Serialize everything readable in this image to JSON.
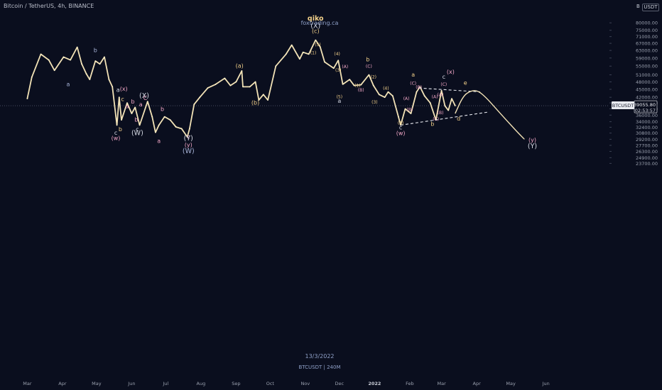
{
  "header": {
    "symbol_line": "Bitcoin / TetherUS, 4h, BINANCE",
    "currency": "USDT",
    "currency_prefix": "B",
    "author": "qiko",
    "site": "foxtrading.ca",
    "date": "13/3/2022",
    "footer_symbol": "BTCUSDT | 240M"
  },
  "chart_data": {
    "type": "line",
    "title": "",
    "xlabel": "",
    "ylabel": "",
    "y_scale": "log",
    "ylim": [
      22600,
      84000
    ],
    "price_ticks": [
      80000,
      75000,
      71000,
      67000,
      63000,
      59000,
      55000,
      51000,
      48000,
      45000,
      42000,
      40000,
      38000,
      36000,
      34000,
      32400,
      30800,
      29200,
      27700,
      26300,
      24900,
      23700
    ],
    "months": [
      "Mar",
      "Apr",
      "May",
      "Jun",
      "Jul",
      "Aug",
      "Sep",
      "Oct",
      "Nov",
      "Dec",
      "2022",
      "Feb",
      "Mar",
      "Apr",
      "May",
      "Jun"
    ],
    "last_price": {
      "symbol": "BTCUSDT",
      "price": "39055.80",
      "countdown": "02:53:57",
      "value": 39055.8
    },
    "price_series": {
      "name": "",
      "x": [
        "2021-03-01",
        "2021-03-05",
        "2021-03-13",
        "2021-03-20",
        "2021-03-25",
        "2021-04-02",
        "2021-04-08",
        "2021-04-14",
        "2021-04-18",
        "2021-04-22",
        "2021-04-25",
        "2021-04-30",
        "2021-05-04",
        "2021-05-08",
        "2021-05-12",
        "2021-05-15",
        "2021-05-19",
        "2021-05-21",
        "2021-05-23",
        "2021-05-28",
        "2021-06-01",
        "2021-06-04",
        "2021-06-08",
        "2021-06-15",
        "2021-06-19",
        "2021-06-22",
        "2021-06-25",
        "2021-06-30",
        "2021-07-05",
        "2021-07-10",
        "2021-07-15",
        "2021-07-20",
        "2021-07-22",
        "2021-07-26",
        "2021-07-31",
        "2021-08-07",
        "2021-08-14",
        "2021-08-22",
        "2021-08-27",
        "2021-09-01",
        "2021-09-06",
        "2021-09-07",
        "2021-09-13",
        "2021-09-18",
        "2021-09-21",
        "2021-09-25",
        "2021-09-29",
        "2021-10-06",
        "2021-10-15",
        "2021-10-20",
        "2021-10-27",
        "2021-10-30",
        "2021-11-04",
        "2021-11-10",
        "2021-11-14",
        "2021-11-18",
        "2021-11-26",
        "2021-11-30",
        "2021-12-04",
        "2021-12-10",
        "2021-12-14",
        "2021-12-20",
        "2021-12-27",
        "2021-12-31",
        "2022-01-05",
        "2022-01-10",
        "2022-01-13",
        "2022-01-17",
        "2022-01-22",
        "2022-01-24",
        "2022-01-28",
        "2022-02-02",
        "2022-02-07",
        "2022-02-10",
        "2022-02-14",
        "2022-02-19",
        "2022-02-24",
        "2022-03-01",
        "2022-03-04",
        "2022-03-07",
        "2022-03-10",
        "2022-03-13"
      ],
      "y": [
        41500,
        50000,
        61000,
        58000,
        53000,
        59500,
        58000,
        64800,
        56000,
        51500,
        49000,
        57500,
        56000,
        59500,
        49000,
        46000,
        33000,
        42000,
        34500,
        40000,
        36500,
        38500,
        33000,
        40500,
        35500,
        31000,
        33000,
        35500,
        34500,
        32500,
        32000,
        29800,
        32000,
        39500,
        42000,
        45500,
        47000,
        49500,
        46500,
        48000,
        52800,
        46000,
        46000,
        48000,
        41000,
        43000,
        41000,
        55000,
        61000,
        66000,
        58500,
        62000,
        61000,
        68900,
        65000,
        57000,
        54000,
        57800,
        47000,
        49000,
        46500,
        46800,
        51000,
        46500,
        43000,
        42000,
        44000,
        42500,
        35500,
        33000,
        38000,
        36500,
        44000,
        46000,
        42500,
        40000,
        34500,
        44500,
        39000,
        37500,
        41500,
        39055
      ]
    },
    "projection": {
      "name": "",
      "x": [
        "2022-03-13",
        "2022-03-20",
        "2022-03-27",
        "2022-04-02",
        "2022-04-09",
        "2022-04-17",
        "2022-04-27",
        "2022-05-07",
        "2022-05-13"
      ],
      "y": [
        36500,
        42500,
        44500,
        44500,
        42000,
        38500,
        34500,
        31000,
        29200
      ]
    },
    "triangle_lines": [
      {
        "x": [
          "2022-02-09",
          "2022-04-04"
        ],
        "y": [
          45500,
          44000
        ]
      },
      {
        "x": [
          "2022-01-24",
          "2022-04-12"
        ],
        "y": [
          33000,
          37000
        ]
      }
    ],
    "wave_labels": [
      {
        "text": "b",
        "x": "2021-04-30",
        "y": 62000,
        "color": "#a8b4d8"
      },
      {
        "text": "a",
        "x": "2021-04-06",
        "y": 46200,
        "color": "#a8b4d8"
      },
      {
        "text": "a",
        "x": "2021-05-20",
        "y": 44000,
        "color": "#d8dce6"
      },
      {
        "text": "(x)",
        "x": "2021-05-25",
        "y": 44500,
        "color": "#f4a8c8"
      },
      {
        "text": "c",
        "x": "2021-05-24",
        "y": 40700,
        "color": "#f2d08a"
      },
      {
        "text": "a",
        "x": "2021-05-28",
        "y": 38200,
        "color": "#f4a8c8"
      },
      {
        "text": "b",
        "x": "2021-05-22",
        "y": 31300,
        "color": "#f2d08a"
      },
      {
        "text": "c",
        "x": "2021-05-18",
        "y": 30400,
        "color": "#d8dce6"
      },
      {
        "text": "(w)",
        "x": "2021-05-18",
        "y": 29000,
        "color": "#f4a8c8"
      },
      {
        "text": "(X)",
        "x": "2021-06-12",
        "y": 41800,
        "color": "#d8dce6"
      },
      {
        "text": "C",
        "x": "2021-06-13",
        "y": 41000,
        "color": "#f4a8c8"
      },
      {
        "text": "b",
        "x": "2021-06-02",
        "y": 39800,
        "color": "#f4a8c8"
      },
      {
        "text": "a",
        "x": "2021-06-09",
        "y": 38800,
        "color": "#f4a8c8"
      },
      {
        "text": "b",
        "x": "2021-06-05",
        "y": 34000,
        "color": "#f4a8c8"
      },
      {
        "text": "c",
        "x": "2021-06-06",
        "y": 31300,
        "color": "#d8dce6"
      },
      {
        "text": "(W)",
        "x": "2021-06-06",
        "y": 30300,
        "color": "#d8dce6"
      },
      {
        "text": "a",
        "x": "2021-06-25",
        "y": 28300,
        "color": "#f4a8c8"
      },
      {
        "text": "b",
        "x": "2021-06-28",
        "y": 37300,
        "color": "#f4a8c8"
      },
      {
        "text": "c",
        "x": "2021-07-21",
        "y": 29400,
        "color": "#f4a8c8"
      },
      {
        "text": "(Y)",
        "x": "2021-07-21",
        "y": 28900,
        "color": "#d8dce6"
      },
      {
        "text": "(y)",
        "x": "2021-07-21",
        "y": 27400,
        "color": "#f4a8c8"
      },
      {
        "text": "(W)",
        "x": "2021-07-21",
        "y": 25900,
        "color": "#a8b4d8"
      },
      {
        "text": "(a)",
        "x": "2021-09-04",
        "y": 54300,
        "color": "#f2d08a"
      },
      {
        "text": "(b)",
        "x": "2021-09-18",
        "y": 39400,
        "color": "#f2d08a"
      },
      {
        "text": "qiko",
        "x": "2021-11-10",
        "y": 81500,
        "color": "#f2d08a"
      },
      {
        "text": "(X)",
        "x": "2021-11-10",
        "y": 76500,
        "color": "#d8dce6"
      },
      {
        "text": "(c)",
        "x": "2021-11-10",
        "y": 73200,
        "color": "#f2d08a"
      },
      {
        "text": "(5)",
        "x": "2021-11-12",
        "y": 65500,
        "color": "#f2d08a"
      },
      {
        "text": "(1)",
        "x": "2021-11-08",
        "y": 61000,
        "color": "#f2d08a"
      },
      {
        "text": "(4)",
        "x": "2021-11-29",
        "y": 60400,
        "color": "#f2d08a"
      },
      {
        "text": "(A)",
        "x": "2021-12-06",
        "y": 54000,
        "color": "#f4a8c8"
      },
      {
        "text": "(3)",
        "x": "2021-11-30",
        "y": 52400,
        "color": "#f2d08a"
      },
      {
        "text": "b",
        "x": "2021-12-26",
        "y": 57300,
        "color": "#f2d08a"
      },
      {
        "text": "(C)",
        "x": "2021-12-27",
        "y": 54200,
        "color": "#f4a8c8"
      },
      {
        "text": "(2)",
        "x": "2021-12-31",
        "y": 49500,
        "color": "#f2d08a"
      },
      {
        "text": "(1)",
        "x": "2021-12-17",
        "y": 45900,
        "color": "#f2d08a"
      },
      {
        "text": "(B)",
        "x": "2021-12-20",
        "y": 44100,
        "color": "#f4a8c8"
      },
      {
        "text": "(5)",
        "x": "2021-12-01",
        "y": 41600,
        "color": "#f2d08a"
      },
      {
        "text": "a",
        "x": "2021-12-01",
        "y": 40000,
        "color": "#d8dce6"
      },
      {
        "text": "(4)",
        "x": "2022-01-11",
        "y": 44800,
        "color": "#f2d08a"
      },
      {
        "text": "(3)",
        "x": "2022-01-01",
        "y": 39800,
        "color": "#f2d08a"
      },
      {
        "text": "a",
        "x": "2022-02-04",
        "y": 50300,
        "color": "#f2d08a"
      },
      {
        "text": "(x)",
        "x": "2022-03-09",
        "y": 51500,
        "color": "#f4a8c8"
      },
      {
        "text": "c",
        "x": "2022-03-03",
        "y": 49300,
        "color": "#d8dce6"
      },
      {
        "text": "(C)",
        "x": "2022-02-04",
        "y": 46800,
        "color": "#f4a8c8"
      },
      {
        "text": "(B)",
        "x": "2022-02-09",
        "y": 45200,
        "color": "#f4a8c8"
      },
      {
        "text": "(C)",
        "x": "2022-03-03",
        "y": 46400,
        "color": "#f4a8c8"
      },
      {
        "text": "e",
        "x": "2022-03-22",
        "y": 46800,
        "color": "#f2d08a"
      },
      {
        "text": "(A)",
        "x": "2022-01-29",
        "y": 41000,
        "color": "#f4a8c8"
      },
      {
        "text": "(A)",
        "x": "2022-02-23",
        "y": 41600,
        "color": "#f4a8c8"
      },
      {
        "text": "(A)",
        "x": "2022-02-28",
        "y": 42400,
        "color": "#f4a8c8"
      },
      {
        "text": "(B)",
        "x": "2022-02-01",
        "y": 37300,
        "color": "#f4a8c8"
      },
      {
        "text": "(B)",
        "x": "2022-02-28",
        "y": 36300,
        "color": "#f4a8c8"
      },
      {
        "text": "(C)",
        "x": "2022-02-24",
        "y": 34300,
        "color": "#f4a8c8"
      },
      {
        "text": "d",
        "x": "2022-03-16",
        "y": 34300,
        "color": "#f2d08a"
      },
      {
        "text": "(5)",
        "x": "2022-01-24",
        "y": 33200,
        "color": "#f2d08a"
      },
      {
        "text": "b",
        "x": "2022-02-21",
        "y": 32800,
        "color": "#f2d08a"
      },
      {
        "text": "c",
        "x": "2022-01-24",
        "y": 31800,
        "color": "#d8dce6"
      },
      {
        "text": "(w)",
        "x": "2022-01-24",
        "y": 30300,
        "color": "#f4a8c8"
      },
      {
        "text": "(y)",
        "x": "2022-05-20",
        "y": 28600,
        "color": "#f4a8c8"
      },
      {
        "text": "(Y)",
        "x": "2022-05-20",
        "y": 27000,
        "color": "#d8dce6"
      }
    ]
  }
}
